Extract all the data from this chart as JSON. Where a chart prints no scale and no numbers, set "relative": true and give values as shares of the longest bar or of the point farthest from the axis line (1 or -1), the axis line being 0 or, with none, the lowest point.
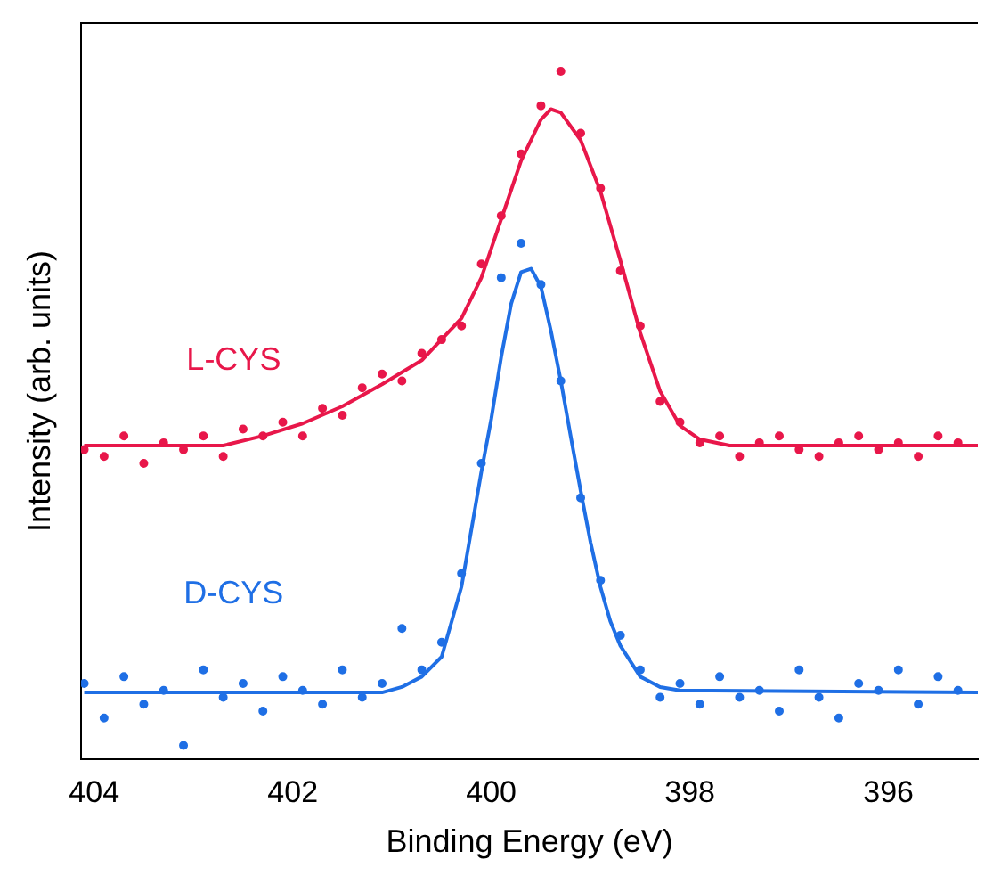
{
  "chart_data": {
    "type": "scatter",
    "xlabel": "Binding Energy (eV)",
    "ylabel": "Intensity (arb. units)",
    "relative": true,
    "xlim": [
      404.13,
      395.1
    ],
    "xticks": [
      404,
      402,
      400,
      398,
      396
    ],
    "grid": false,
    "legend": false,
    "series": [
      {
        "name": "L-CYS",
        "marker": "circle",
        "color": "#e8174a",
        "x": [
          404.1,
          403.9,
          403.7,
          403.5,
          403.3,
          403.1,
          402.9,
          402.7,
          402.5,
          402.3,
          402.1,
          401.9,
          401.7,
          401.5,
          401.3,
          401.1,
          400.9,
          400.7,
          400.5,
          400.3,
          400.1,
          399.9,
          399.7,
          399.5,
          399.3,
          399.1,
          398.9,
          398.7,
          398.5,
          398.3,
          398.1,
          397.9,
          397.7,
          397.5,
          397.3,
          397.1,
          396.9,
          396.7,
          396.5,
          396.3,
          396.1,
          395.9,
          395.7,
          395.5,
          395.3
        ],
        "values": [
          0.45,
          0.44,
          0.47,
          0.43,
          0.46,
          0.45,
          0.47,
          0.44,
          0.48,
          0.47,
          0.49,
          0.47,
          0.51,
          0.5,
          0.54,
          0.56,
          0.55,
          0.59,
          0.61,
          0.63,
          0.72,
          0.79,
          0.88,
          0.95,
          1.0,
          0.91,
          0.83,
          0.71,
          0.63,
          0.52,
          0.49,
          0.46,
          0.47,
          0.44,
          0.46,
          0.47,
          0.45,
          0.44,
          0.46,
          0.47,
          0.45,
          0.46,
          0.44,
          0.47,
          0.46
        ]
      },
      {
        "type": "line",
        "marker": "none",
        "color": "#e8174a",
        "x": [
          404.1,
          402.7,
          402.3,
          401.9,
          401.5,
          401.1,
          400.7,
          400.3,
          400.1,
          399.9,
          399.7,
          399.5,
          399.4,
          399.3,
          399.1,
          398.9,
          398.7,
          398.5,
          398.3,
          398.1,
          397.9,
          397.6,
          395.1
        ],
        "values": [
          0.456,
          0.456,
          0.47,
          0.488,
          0.513,
          0.545,
          0.58,
          0.641,
          0.7,
          0.785,
          0.87,
          0.93,
          0.945,
          0.94,
          0.9,
          0.825,
          0.725,
          0.62,
          0.535,
          0.485,
          0.465,
          0.456,
          0.456
        ]
      },
      {
        "name": "D-CYS",
        "marker": "circle",
        "color": "#1f6fe5",
        "x": [
          404.1,
          403.9,
          403.7,
          403.5,
          403.3,
          403.1,
          402.9,
          402.7,
          402.5,
          402.3,
          402.1,
          401.9,
          401.7,
          401.5,
          401.3,
          401.1,
          400.9,
          400.7,
          400.5,
          400.3,
          400.1,
          399.9,
          399.7,
          399.5,
          399.3,
          399.1,
          398.9,
          398.7,
          398.5,
          398.3,
          398.1,
          397.9,
          397.7,
          397.5,
          397.3,
          397.1,
          396.9,
          396.7,
          396.5,
          396.3,
          396.1,
          395.9,
          395.7,
          395.5,
          395.3
        ],
        "values": [
          0.11,
          0.06,
          0.12,
          0.08,
          0.1,
          0.02,
          0.13,
          0.09,
          0.11,
          0.07,
          0.12,
          0.1,
          0.08,
          0.13,
          0.09,
          0.11,
          0.19,
          0.13,
          0.17,
          0.27,
          0.43,
          0.7,
          0.75,
          0.69,
          0.55,
          0.38,
          0.26,
          0.18,
          0.13,
          0.09,
          0.11,
          0.08,
          0.12,
          0.09,
          0.1,
          0.07,
          0.13,
          0.09,
          0.06,
          0.11,
          0.1,
          0.13,
          0.08,
          0.12,
          0.1
        ]
      },
      {
        "type": "line",
        "marker": "none",
        "color": "#1f6fe5",
        "x": [
          404.1,
          401.1,
          400.9,
          400.7,
          400.5,
          400.3,
          400.1,
          400.0,
          399.9,
          399.8,
          399.7,
          399.6,
          399.5,
          399.4,
          399.3,
          399.2,
          399.1,
          399.0,
          398.9,
          398.8,
          398.7,
          398.5,
          398.3,
          398.1,
          395.1
        ],
        "values": [
          0.097,
          0.097,
          0.105,
          0.12,
          0.149,
          0.251,
          0.418,
          0.495,
          0.585,
          0.662,
          0.708,
          0.713,
          0.687,
          0.623,
          0.55,
          0.469,
          0.39,
          0.315,
          0.25,
          0.2,
          0.165,
          0.12,
          0.105,
          0.1,
          0.097
        ]
      }
    ]
  }
}
